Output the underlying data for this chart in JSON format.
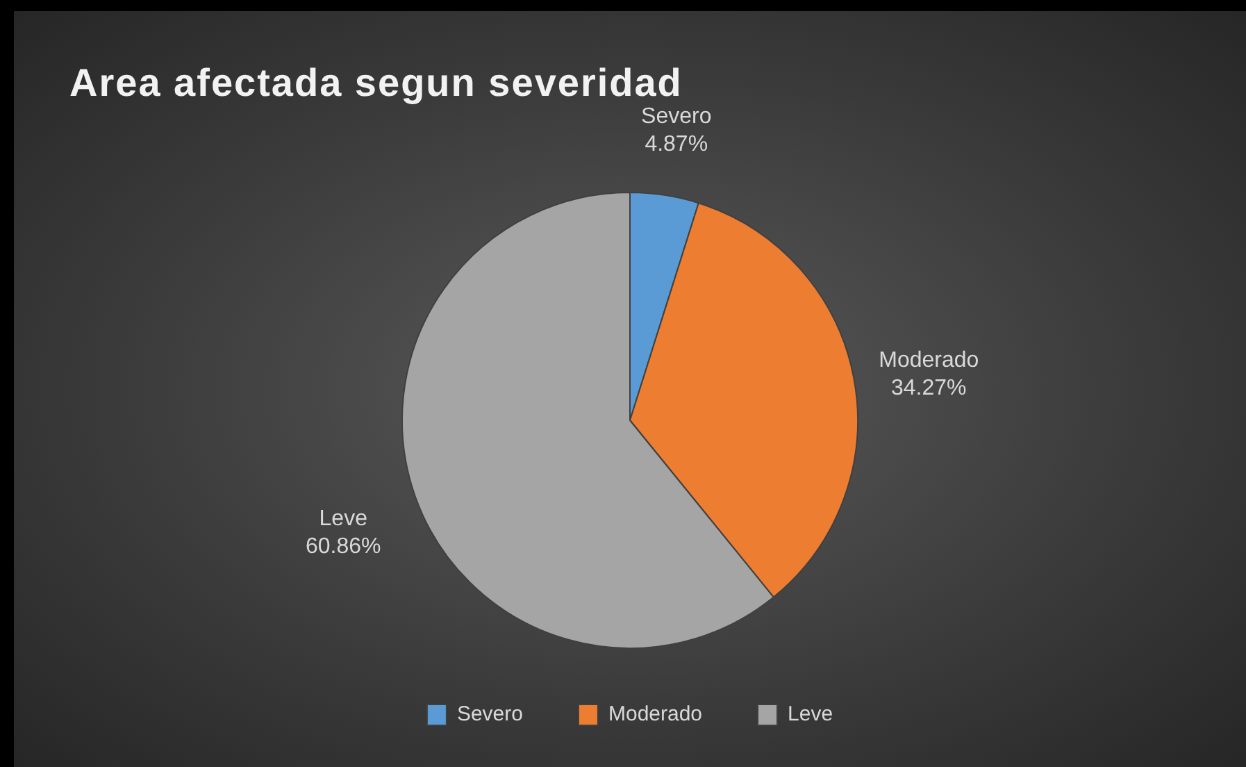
{
  "chart_data": {
    "type": "pie",
    "title": "Area afectada segun severidad",
    "categories": [
      "Severo",
      "Moderado",
      "Leve"
    ],
    "values": [
      4.87,
      34.27,
      60.86
    ],
    "colors": [
      "#5b9bd5",
      "#ed7d31",
      "#a5a5a5"
    ],
    "value_labels": [
      "4.87%",
      "34.27%",
      "60.86%"
    ],
    "legend": "bottom"
  }
}
